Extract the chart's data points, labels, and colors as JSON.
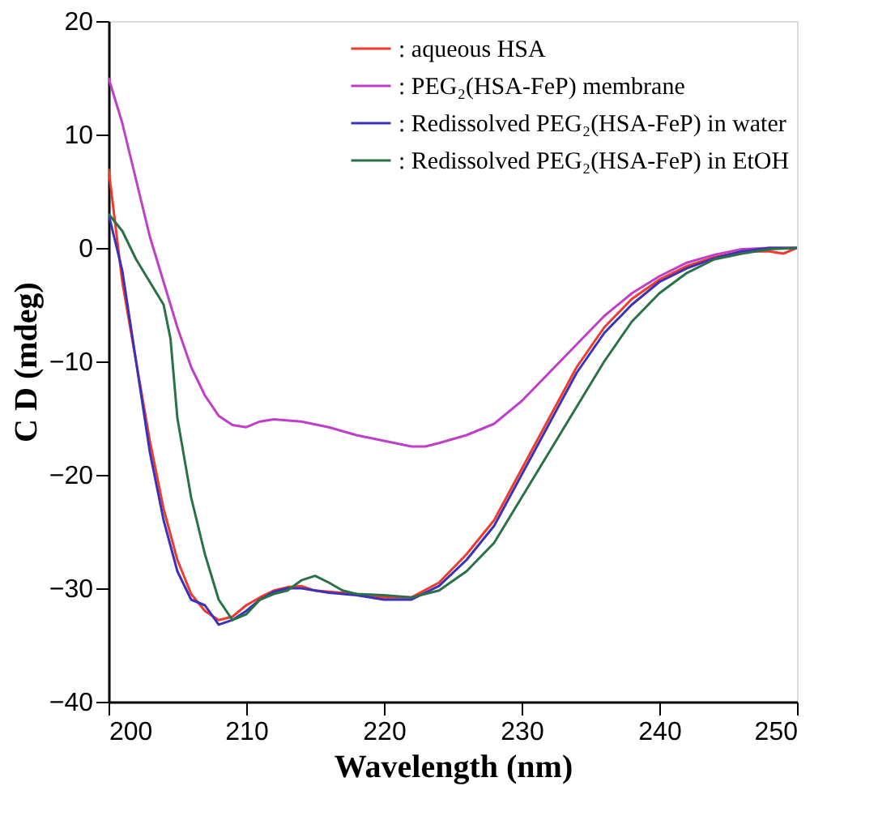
{
  "chart_data": {
    "type": "line",
    "xlabel": "Wavelength (nm)",
    "ylabel": "C D (mdeg)",
    "xlim": [
      200,
      250
    ],
    "xticks": [
      200,
      210,
      220,
      230,
      240,
      250
    ],
    "ylim": [
      -40,
      20
    ],
    "yticks": [
      -40,
      -30,
      -20,
      -10,
      0,
      10,
      20
    ],
    "grid": false,
    "legend": "top right",
    "line_style": "solid",
    "marker": "none",
    "series": [
      {
        "name": ": aqueous HSA",
        "color": "#f03a2e",
        "x": [
          200,
          201,
          202,
          203,
          204,
          205,
          206,
          207,
          208,
          209,
          210,
          211,
          212,
          213,
          214,
          215,
          216,
          218,
          220,
          222,
          224,
          226,
          228,
          230,
          232,
          234,
          236,
          238,
          240,
          242,
          244,
          246,
          248,
          249,
          250
        ],
        "values": [
          7,
          -3,
          -10,
          -17,
          -23,
          -27.5,
          -30.5,
          -32,
          -32.8,
          -32.5,
          -31.5,
          -30.8,
          -30.2,
          -29.9,
          -29.8,
          -30.2,
          -30.3,
          -30.5,
          -30.8,
          -30.8,
          -29.5,
          -27,
          -24,
          -19.5,
          -15,
          -10.5,
          -7,
          -4.5,
          -2.8,
          -1.6,
          -0.8,
          -0.3,
          -0.3,
          -0.5,
          0
        ]
      },
      {
        "name": ": PEG₂(HSA-FeP) membrane",
        "color": "#c03fc8",
        "x": [
          200,
          201,
          202,
          203,
          204,
          205,
          206,
          207,
          208,
          209,
          210,
          211,
          212,
          214,
          216,
          218,
          220,
          222,
          223,
          224,
          226,
          228,
          230,
          232,
          234,
          236,
          238,
          240,
          242,
          244,
          246,
          248,
          250
        ],
        "values": [
          15,
          11,
          6,
          1,
          -3,
          -7,
          -10.5,
          -13,
          -14.8,
          -15.6,
          -15.8,
          -15.3,
          -15.1,
          -15.3,
          -15.8,
          -16.5,
          -17,
          -17.5,
          -17.5,
          -17.2,
          -16.5,
          -15.5,
          -13.5,
          -11,
          -8.5,
          -6,
          -4,
          -2.5,
          -1.3,
          -0.6,
          -0.1,
          0,
          0
        ]
      },
      {
        "name": ": Redissolved PEG₂(HSA-FeP) in water",
        "color": "#3a32b8",
        "x": [
          200,
          201,
          202,
          203,
          204,
          205,
          206,
          207,
          208,
          209,
          210,
          211,
          212,
          213,
          214,
          215,
          216,
          218,
          220,
          222,
          224,
          226,
          228,
          230,
          232,
          234,
          236,
          238,
          240,
          242,
          244,
          246,
          248,
          250
        ],
        "values": [
          3,
          -2,
          -10,
          -18,
          -24,
          -28.5,
          -31,
          -31.5,
          -33.2,
          -32.8,
          -32,
          -31,
          -30.3,
          -30,
          -30,
          -30.2,
          -30.4,
          -30.6,
          -31,
          -31,
          -29.8,
          -27.5,
          -24.5,
          -20,
          -15.5,
          -11,
          -7.5,
          -5,
          -3,
          -1.8,
          -0.9,
          -0.3,
          0,
          0
        ]
      },
      {
        "name": ": Redissolved PEG₂(HSA-FeP) in EtOH",
        "color": "#2a7048",
        "x": [
          200,
          201,
          202,
          203,
          204,
          204.5,
          205,
          206,
          207,
          208,
          209,
          210,
          211,
          212,
          213,
          214,
          215,
          216,
          217,
          218,
          220,
          222,
          224,
          226,
          228,
          230,
          232,
          234,
          236,
          238,
          240,
          242,
          244,
          246,
          248,
          250
        ],
        "values": [
          3,
          1.5,
          -1,
          -3,
          -5,
          -8,
          -15,
          -22,
          -27,
          -31,
          -32.8,
          -32.3,
          -31,
          -30.5,
          -30.2,
          -29.3,
          -28.9,
          -29.5,
          -30.2,
          -30.5,
          -30.6,
          -30.8,
          -30.2,
          -28.5,
          -26,
          -22,
          -18,
          -14,
          -10,
          -6.5,
          -4,
          -2.2,
          -1,
          -0.5,
          -0.1,
          0
        ]
      }
    ]
  }
}
